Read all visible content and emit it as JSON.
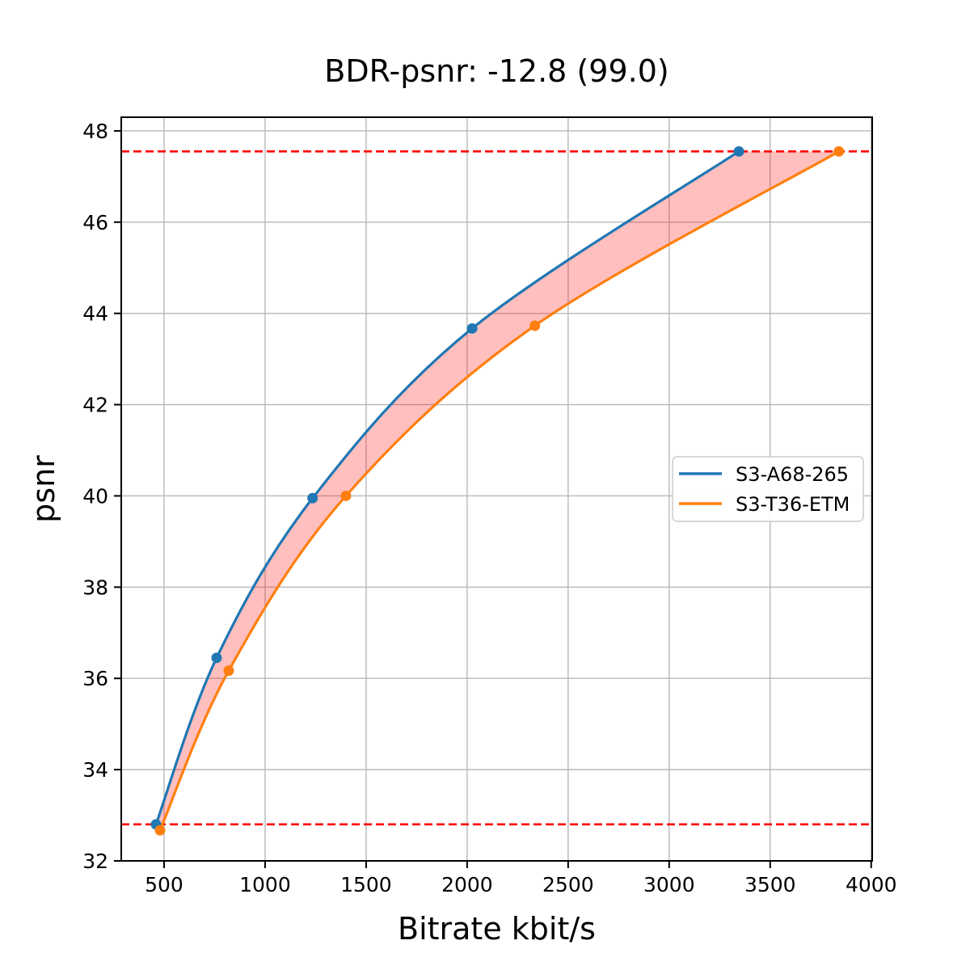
{
  "chart_data": {
    "type": "line",
    "title": "BDR-psnr: -12.8 (99.0)",
    "xlabel": "Bitrate kbit/s",
    "ylabel": "psnr",
    "xlim": [
      288,
      4005
    ],
    "ylim": [
      32.0,
      48.3
    ],
    "xticks": [
      500,
      1000,
      1500,
      2000,
      2500,
      3000,
      3500,
      4000
    ],
    "yticks": [
      32,
      34,
      36,
      38,
      40,
      42,
      44,
      46,
      48
    ],
    "grid": true,
    "grid_color": "#b8b8b8",
    "legend_position": "center-right",
    "series": [
      {
        "name": "S3-A68-265",
        "color": "#1f77b4",
        "marker": "circle",
        "points": [
          [
            460,
            32.8
          ],
          [
            760,
            36.45
          ],
          [
            1235,
            39.95
          ],
          [
            2025,
            43.67
          ],
          [
            3345,
            47.55
          ]
        ]
      },
      {
        "name": "S3-T36-ETM",
        "color": "#ff7f0e",
        "marker": "circle",
        "points": [
          [
            480,
            32.67
          ],
          [
            820,
            36.17
          ],
          [
            1400,
            40.0
          ],
          [
            2335,
            43.73
          ],
          [
            3840,
            47.55
          ]
        ]
      }
    ],
    "hlines": {
      "values": [
        47.55,
        32.8
      ],
      "color": "#ff0000",
      "style": "dashed"
    },
    "fill_between_color": "rgba(255,0,0,0.25)"
  }
}
